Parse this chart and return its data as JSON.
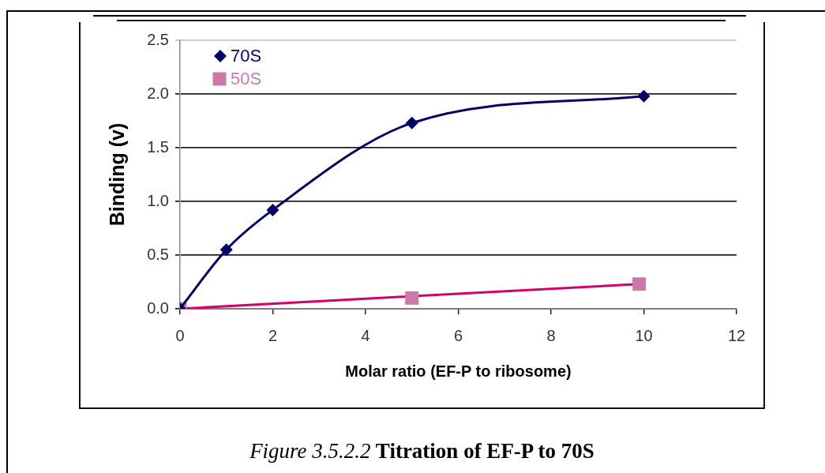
{
  "chart_data": {
    "type": "scatter",
    "title": "Figure 3.5.2.2 Titration of EF-P to 70S",
    "xlabel": "Molar ratio (EF-P to ribosome)",
    "ylabel": "Binding (v)",
    "xlim": [
      0,
      12
    ],
    "xticks": [
      0,
      2,
      4,
      6,
      8,
      10,
      12
    ],
    "ylim": [
      0,
      2.5
    ],
    "yticks": [
      {
        "value": 0,
        "label": "0.0"
      },
      0.5,
      {
        "value": 1,
        "label": "1.0"
      },
      1.5,
      {
        "value": 2,
        "label": "2.0"
      },
      2.5
    ],
    "grid": "y",
    "legend": "top left",
    "series": [
      {
        "name": "70S",
        "type": "line",
        "marker": "diamond",
        "color": "#000066",
        "x": [
          0,
          1,
          2,
          5,
          10
        ],
        "values": [
          0,
          0.55,
          0.92,
          1.73,
          1.98
        ]
      },
      {
        "name": "50S",
        "type": "scatter",
        "marker": "square",
        "color": "#cc79a7",
        "x": [
          0,
          5,
          9.9
        ],
        "values": [
          0,
          0.1,
          0.23
        ]
      },
      {
        "type": "line",
        "marker": "none",
        "color": "#d4006a",
        "x": [
          0,
          9.9
        ],
        "values": [
          0,
          0.23
        ]
      }
    ]
  }
}
